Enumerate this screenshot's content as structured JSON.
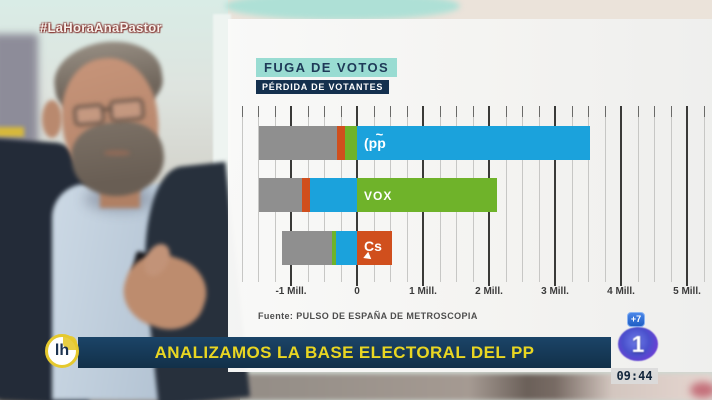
{
  "broadcast": {
    "hashtag": "#LaHoraAnaPastor",
    "ticker_text": "ANALIZAMOS LA BASE ELECTORAL DEL PP",
    "show_logo": "lh",
    "channel_badge": "+7",
    "channel_logo": "1",
    "clock": "09:44"
  },
  "colors": {
    "pp_blue": "#1ba2dc",
    "vox_green": "#6fb32a",
    "cs_orange": "#d04f1d",
    "lost_gray": "#8f8f8f",
    "title_bg_teal": "#99dcd2",
    "navy": "#14304e",
    "banner_navy": "#16395c",
    "banner_yellow": "#e9d622"
  },
  "chart_data": {
    "type": "bar",
    "orientation": "horizontal",
    "title": "FUGA DE VOTOS",
    "subtitle": "PÉRDIDA DE VOTANTES",
    "source": "Fuente: PULSO DE ESPAÑA DE METROSCOPIA",
    "unit": "millions of voters",
    "xlim": [
      -1.95,
      5.35
    ],
    "grid": {
      "minor_step": 0.25,
      "major_step": 1,
      "minor_from": -1.75,
      "minor_to": 5.25
    },
    "legend_position": "none",
    "x_ticks": [
      {
        "label": "-1 Mill.",
        "value": -1
      },
      {
        "label": "0",
        "value": 0
      },
      {
        "label": "1 Mill.",
        "value": 1
      },
      {
        "label": "2 Mill.",
        "value": 2
      },
      {
        "label": "3 Mill.",
        "value": 3
      },
      {
        "label": "4 Mill.",
        "value": 4
      },
      {
        "label": "5 Mill.",
        "value": 5
      }
    ],
    "rows": [
      {
        "party": "PP",
        "logo_text": "pp",
        "retained": {
          "value": 3.53,
          "color": "#1ba2dc"
        },
        "losses": [
          {
            "to": "abstention-other",
            "value": 1.17,
            "color": "#8f8f8f"
          },
          {
            "to": "Cs",
            "value": 0.13,
            "color": "#d04f1d"
          },
          {
            "to": "VOX",
            "value": 0.18,
            "color": "#6fb32a"
          }
        ]
      },
      {
        "party": "VOX",
        "logo_text": "VOX",
        "retained": {
          "value": 2.12,
          "color": "#6fb32a"
        },
        "losses": [
          {
            "to": "abstention-other",
            "value": 0.65,
            "color": "#8f8f8f"
          },
          {
            "to": "Cs",
            "value": 0.13,
            "color": "#d04f1d"
          },
          {
            "to": "PP",
            "value": 0.71,
            "color": "#1ba2dc"
          }
        ]
      },
      {
        "party": "Cs",
        "logo_text": "Cs",
        "retained": {
          "value": 0.53,
          "color": "#d04f1d"
        },
        "losses": [
          {
            "to": "abstention-other",
            "value": 0.76,
            "color": "#8f8f8f"
          },
          {
            "to": "VOX",
            "value": 0.06,
            "color": "#6fb32a"
          },
          {
            "to": "PP",
            "value": 0.32,
            "color": "#1ba2dc"
          }
        ]
      }
    ]
  }
}
